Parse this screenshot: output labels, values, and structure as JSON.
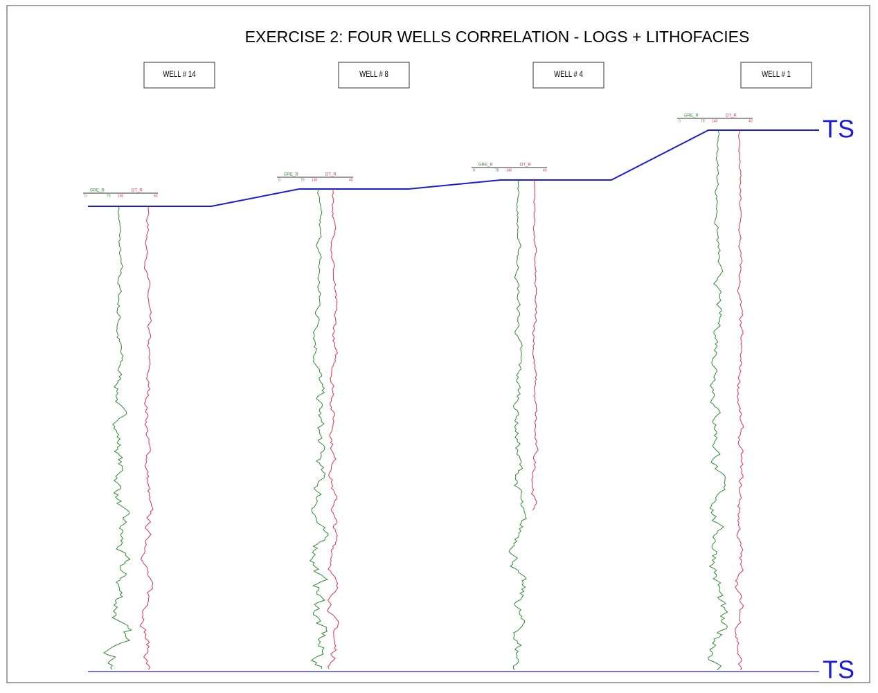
{
  "title": "EXERCISE 2: FOUR WELLS CORRELATION - LOGS + LITHOFACIES",
  "wells": [
    {
      "label": "WELL # 14",
      "gr_header": "GRE_R",
      "dt_header": "DT_R",
      "scale": [
        "0",
        "70",
        "140",
        "40"
      ]
    },
    {
      "label": "WELL # 8",
      "gr_header": "GRE_R",
      "dt_header": "DT_R",
      "scale": [
        "0",
        "70",
        "140",
        "40"
      ]
    },
    {
      "label": "WELL # 4",
      "gr_header": "GRE_R",
      "dt_header": "DT_R",
      "scale": [
        "0",
        "70",
        "140",
        "40"
      ]
    },
    {
      "label": "WELL # 1",
      "gr_header": "GRE_R",
      "dt_header": "DT_R",
      "scale": [
        "0",
        "70",
        "140",
        "40"
      ]
    }
  ],
  "horizons": {
    "top": "TS",
    "base": "TS"
  }
}
